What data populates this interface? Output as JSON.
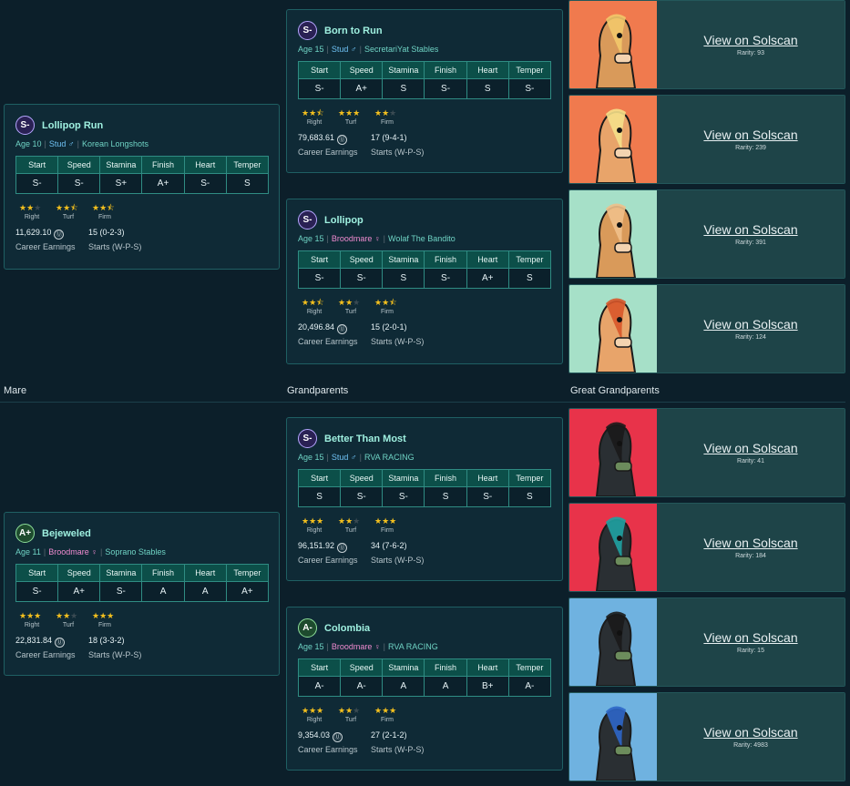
{
  "sections": {
    "mare": "Mare",
    "grandparents": "Grandparents",
    "great_grandparents": "Great Grandparents"
  },
  "stat_headers": [
    "Start",
    "Speed",
    "Stamina",
    "Finish",
    "Heart",
    "Temper"
  ],
  "surface_labels": [
    "Right",
    "Turf",
    "Firm"
  ],
  "earnings_label": "Career Earnings",
  "starts_label": "Starts (W-P-S)",
  "horses": [
    {
      "id": "lollipop-run",
      "grade": "S-",
      "name": "Lollipop Run",
      "age": "Age 10",
      "sex": "Stud",
      "sex_symbol": "♂",
      "stable": "Korean Longshots",
      "stats": [
        "S-",
        "S-",
        "S+",
        "A+",
        "S-",
        "S"
      ],
      "surf_stars": [
        2,
        2.5,
        2.5
      ],
      "earnings": "11,629.10",
      "starts": "15 (0-2-3)"
    },
    {
      "id": "born-to-run",
      "grade": "S-",
      "name": "Born to Run",
      "age": "Age 15",
      "sex": "Stud",
      "sex_symbol": "♂",
      "stable": "SecretariYat Stables",
      "stats": [
        "S-",
        "A+",
        "S",
        "S-",
        "S",
        "S-"
      ],
      "surf_stars": [
        2.5,
        3,
        2
      ],
      "earnings": "79,683.61",
      "starts": "17 (9-4-1)"
    },
    {
      "id": "lollipop",
      "grade": "S-",
      "name": "Lollipop",
      "age": "Age 15",
      "sex": "Broodmare",
      "sex_symbol": "♀",
      "stable": "Wolaf The Bandito",
      "stats": [
        "S-",
        "S-",
        "S",
        "S-",
        "A+",
        "S"
      ],
      "surf_stars": [
        2.5,
        2,
        2.5
      ],
      "earnings": "20,496.84",
      "starts": "15 (2-0-1)"
    },
    {
      "id": "bejeweled",
      "grade": "A+",
      "name": "Bejeweled",
      "age": "Age 11",
      "sex": "Broodmare",
      "sex_symbol": "♀",
      "stable": "Soprano Stables",
      "stats": [
        "S-",
        "A+",
        "S-",
        "A",
        "A",
        "A+"
      ],
      "surf_stars": [
        3,
        2,
        3
      ],
      "earnings": "22,831.84",
      "starts": "18 (3-3-2)"
    },
    {
      "id": "better-than-most",
      "grade": "S-",
      "name": "Better Than Most",
      "age": "Age 15",
      "sex": "Stud",
      "sex_symbol": "♂",
      "stable": "RVA RACING",
      "stats": [
        "S",
        "S-",
        "S-",
        "S",
        "S-",
        "S"
      ],
      "surf_stars": [
        3,
        2,
        3
      ],
      "earnings": "96,151.92",
      "starts": "34 (7-6-2)"
    },
    {
      "id": "colombia",
      "grade": "A-",
      "name": "Colombia",
      "age": "Age 15",
      "sex": "Broodmare",
      "sex_symbol": "♀",
      "stable": "RVA RACING",
      "stats": [
        "A-",
        "A-",
        "A",
        "A",
        "B+",
        "A-"
      ],
      "surf_stars": [
        3,
        2,
        3
      ],
      "earnings": "9,354.03",
      "starts": "27 (2-1-2)"
    }
  ],
  "nfts": [
    {
      "link": "View on Solscan",
      "rarity": "Rarity: 93",
      "bg": "#f07a4e"
    },
    {
      "link": "View on Solscan",
      "rarity": "Rarity: 239",
      "bg": "#f07a4e"
    },
    {
      "link": "View on Solscan",
      "rarity": "Rarity: 391",
      "bg": "#a6e0c8"
    },
    {
      "link": "View on Solscan",
      "rarity": "Rarity: 124",
      "bg": "#a6e0c8"
    },
    {
      "link": "View on Solscan",
      "rarity": "Rarity: 41",
      "bg": "#e8334a"
    },
    {
      "link": "View on Solscan",
      "rarity": "Rarity: 184",
      "bg": "#e8334a"
    },
    {
      "link": "View on Solscan",
      "rarity": "Rarity: 15",
      "bg": "#6fb2e0"
    },
    {
      "link": "View on Solscan",
      "rarity": "Rarity: 4983",
      "bg": "#6fb2e0"
    }
  ],
  "coin_glyph": "Ⓤ"
}
